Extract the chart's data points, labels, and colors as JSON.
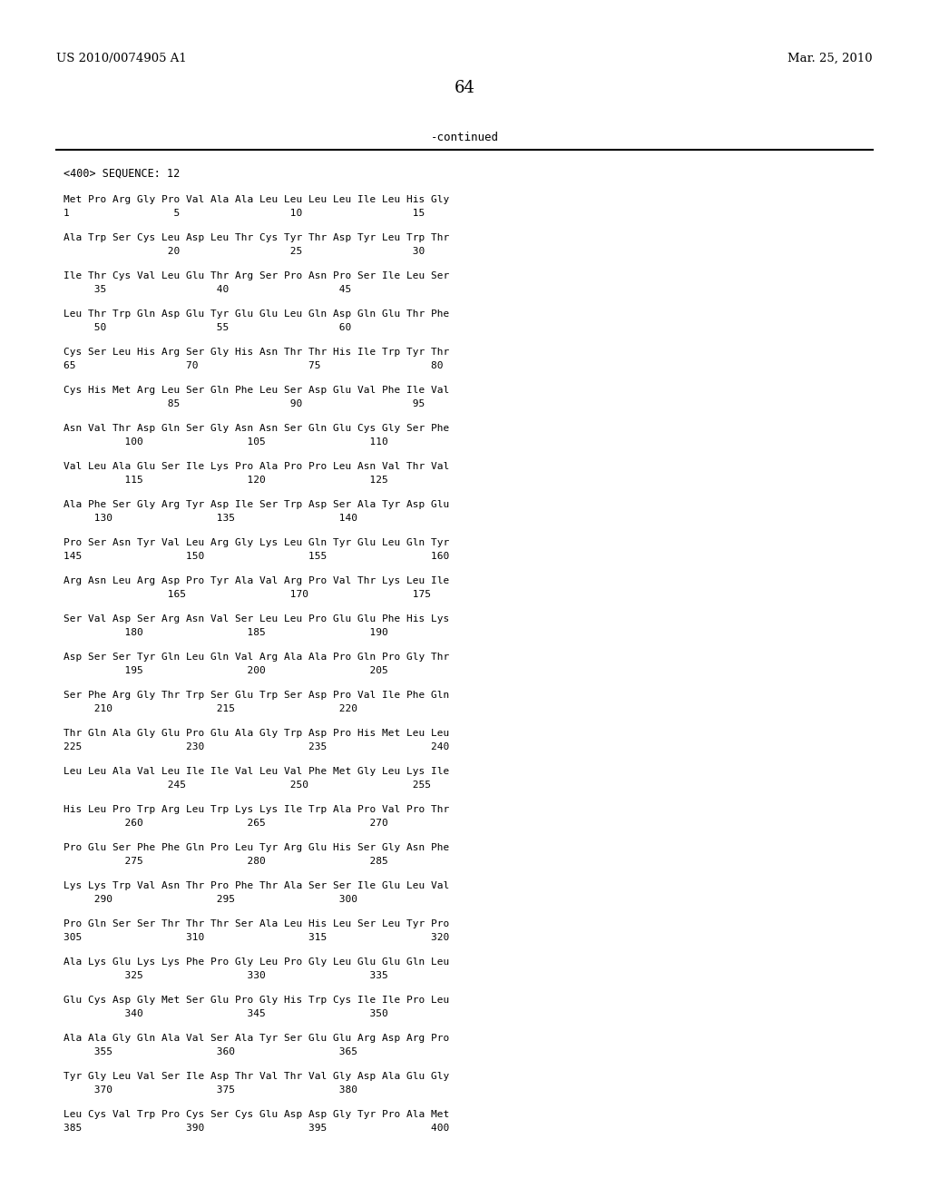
{
  "header_left": "US 2010/0074905 A1",
  "header_right": "Mar. 25, 2010",
  "page_number": "64",
  "continued_text": "-continued",
  "sequence_header": "<400> SEQUENCE: 12",
  "sequence_blocks": [
    {
      "seq": "Met Pro Arg Gly Pro Val Ala Ala Leu Leu Leu Leu Ile Leu His Gly",
      "num": "1                 5                  10                  15"
    },
    {
      "seq": "Ala Trp Ser Cys Leu Asp Leu Thr Cys Tyr Thr Asp Tyr Leu Trp Thr",
      "num": "                 20                  25                  30"
    },
    {
      "seq": "Ile Thr Cys Val Leu Glu Thr Arg Ser Pro Asn Pro Ser Ile Leu Ser",
      "num": "     35                  40                  45"
    },
    {
      "seq": "Leu Thr Trp Gln Asp Glu Tyr Glu Glu Leu Gln Asp Gln Glu Thr Phe",
      "num": "     50                  55                  60"
    },
    {
      "seq": "Cys Ser Leu His Arg Ser Gly His Asn Thr Thr His Ile Trp Tyr Thr",
      "num": "65                  70                  75                  80"
    },
    {
      "seq": "Cys His Met Arg Leu Ser Gln Phe Leu Ser Asp Glu Val Phe Ile Val",
      "num": "                 85                  90                  95"
    },
    {
      "seq": "Asn Val Thr Asp Gln Ser Gly Asn Asn Ser Gln Glu Cys Gly Ser Phe",
      "num": "          100                 105                 110"
    },
    {
      "seq": "Val Leu Ala Glu Ser Ile Lys Pro Ala Pro Pro Leu Asn Val Thr Val",
      "num": "          115                 120                 125"
    },
    {
      "seq": "Ala Phe Ser Gly Arg Tyr Asp Ile Ser Trp Asp Ser Ala Tyr Asp Glu",
      "num": "     130                 135                 140"
    },
    {
      "seq": "Pro Ser Asn Tyr Val Leu Arg Gly Lys Leu Gln Tyr Glu Leu Gln Tyr",
      "num": "145                 150                 155                 160"
    },
    {
      "seq": "Arg Asn Leu Arg Asp Pro Tyr Ala Val Arg Pro Val Thr Lys Leu Ile",
      "num": "                 165                 170                 175"
    },
    {
      "seq": "Ser Val Asp Ser Arg Asn Val Ser Leu Leu Pro Glu Glu Phe His Lys",
      "num": "          180                 185                 190"
    },
    {
      "seq": "Asp Ser Ser Tyr Gln Leu Gln Val Arg Ala Ala Pro Gln Pro Gly Thr",
      "num": "          195                 200                 205"
    },
    {
      "seq": "Ser Phe Arg Gly Thr Trp Ser Glu Trp Ser Asp Pro Val Ile Phe Gln",
      "num": "     210                 215                 220"
    },
    {
      "seq": "Thr Gln Ala Gly Glu Pro Glu Ala Gly Trp Asp Pro His Met Leu Leu",
      "num": "225                 230                 235                 240"
    },
    {
      "seq": "Leu Leu Ala Val Leu Ile Ile Val Leu Val Phe Met Gly Leu Lys Ile",
      "num": "                 245                 250                 255"
    },
    {
      "seq": "His Leu Pro Trp Arg Leu Trp Lys Lys Ile Trp Ala Pro Val Pro Thr",
      "num": "          260                 265                 270"
    },
    {
      "seq": "Pro Glu Ser Phe Phe Gln Pro Leu Tyr Arg Glu His Ser Gly Asn Phe",
      "num": "          275                 280                 285"
    },
    {
      "seq": "Lys Lys Trp Val Asn Thr Pro Phe Thr Ala Ser Ser Ile Glu Leu Val",
      "num": "     290                 295                 300"
    },
    {
      "seq": "Pro Gln Ser Ser Thr Thr Thr Ser Ala Leu His Leu Ser Leu Tyr Pro",
      "num": "305                 310                 315                 320"
    },
    {
      "seq": "Ala Lys Glu Lys Lys Phe Pro Gly Leu Pro Gly Leu Glu Glu Gln Leu",
      "num": "          325                 330                 335"
    },
    {
      "seq": "Glu Cys Asp Gly Met Ser Glu Pro Gly His Trp Cys Ile Ile Pro Leu",
      "num": "          340                 345                 350"
    },
    {
      "seq": "Ala Ala Gly Gln Ala Val Ser Ala Tyr Ser Glu Glu Arg Asp Arg Pro",
      "num": "     355                 360                 365"
    },
    {
      "seq": "Tyr Gly Leu Val Ser Ile Asp Thr Val Thr Val Gly Asp Ala Glu Gly",
      "num": "     370                 375                 380"
    },
    {
      "seq": "Leu Cys Val Trp Pro Cys Ser Cys Glu Asp Asp Gly Tyr Pro Ala Met",
      "num": "385                 390                 395                 400"
    }
  ],
  "background_color": "#ffffff",
  "text_color": "#000000"
}
